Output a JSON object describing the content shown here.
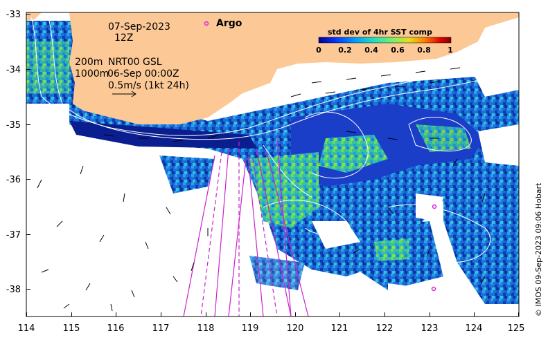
{
  "map": {
    "date": "07-Sep-2023",
    "hour": "12Z",
    "legend_argo": "Argo",
    "contour_line1_a": "200m",
    "contour_line1_b": "NRT00 GSL",
    "contour_line2_a": "1000m",
    "contour_line2_b": "06-Sep 00:00Z",
    "vector_scale": "0.5m/s (1kt 24h)",
    "copyright": "© IMOS 09-Sep-2023 09:06 Hobart",
    "x_ticks": [
      "114",
      "115",
      "116",
      "117",
      "118",
      "119",
      "120",
      "121",
      "122",
      "123",
      "124",
      "125"
    ],
    "y_ticks": [
      "-33",
      "-34",
      "-35",
      "-36",
      "-37",
      "-38"
    ],
    "colors": {
      "land": "#fcc896",
      "argo_marker": "#e020e0",
      "track_lines": "#cc22cc",
      "contours": "#ffffff"
    }
  },
  "colorbar": {
    "title": "std dev of 4hr SST comp",
    "ticks": [
      "0",
      "0.2",
      "0.4",
      "0.6",
      "0.8",
      "1"
    ],
    "colormap": [
      "#000090",
      "#0030ff",
      "#00a0ff",
      "#20e0c0",
      "#70f070",
      "#e0e020",
      "#ff8000",
      "#e00000",
      "#800000"
    ]
  }
}
